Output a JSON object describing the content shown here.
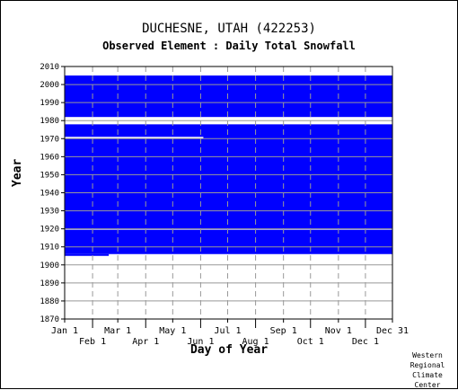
{
  "chart_data": {
    "type": "heatmap",
    "title": "DUCHESNE, UTAH   (422253)",
    "subtitle": "Observed Element : Daily Total Snowfall",
    "xlabel": "Day of Year",
    "ylabel": "Year",
    "xlim": [
      1,
      365
    ],
    "ylim": [
      1870,
      2010
    ],
    "x_ticks_upper": [
      {
        "label": "Jan 1",
        "day": 1
      },
      {
        "label": "Mar 1",
        "day": 60
      },
      {
        "label": "May 1",
        "day": 121
      },
      {
        "label": "Jul 1",
        "day": 182
      },
      {
        "label": "Sep 1",
        "day": 244
      },
      {
        "label": "Nov 1",
        "day": 305
      },
      {
        "label": "Dec 31",
        "day": 365
      }
    ],
    "x_ticks_lower": [
      {
        "label": "Feb 1",
        "day": 32
      },
      {
        "label": "Apr 1",
        "day": 91
      },
      {
        "label": "Jun 1",
        "day": 152
      },
      {
        "label": "Aug 1",
        "day": 213
      },
      {
        "label": "Oct 1",
        "day": 274
      },
      {
        "label": "Dec 1",
        "day": 335
      }
    ],
    "y_ticks": [
      2010,
      2000,
      1990,
      1980,
      1970,
      1960,
      1950,
      1940,
      1930,
      1920,
      1910,
      1900,
      1890,
      1880,
      1870
    ],
    "grid": true,
    "series": [
      {
        "color": "#0000ff",
        "observed_year_ranges": [
          {
            "from": 1905,
            "to": 1906,
            "day_from": 1,
            "day_to": 50
          },
          {
            "from": 1906,
            "to": 1919.5,
            "day_from": 1,
            "day_to": 365
          },
          {
            "from": 1920,
            "to": 1978,
            "day_from": 1,
            "day_to": 365
          },
          {
            "from": 1982,
            "to": 2005,
            "day_from": 1,
            "day_to": 365
          }
        ],
        "missing_year_ranges": [
          {
            "from": 1978,
            "to": 1980
          },
          {
            "from": 1970,
            "to": 1971,
            "day_from": 1,
            "day_to": 155
          }
        ]
      }
    ]
  },
  "credit": "Western\nRegional\nClimate\nCenter"
}
